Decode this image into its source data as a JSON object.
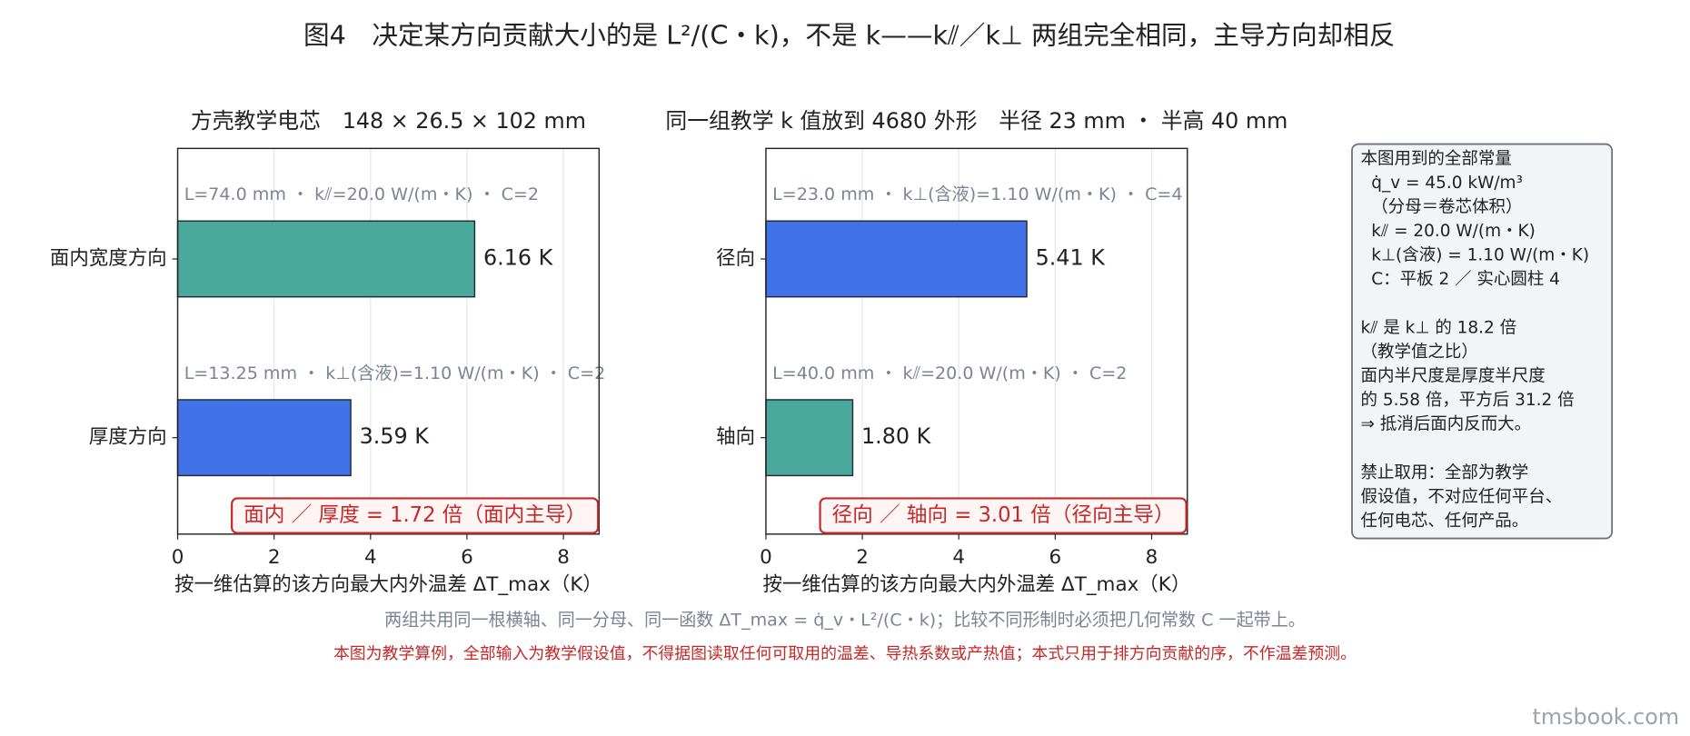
{
  "title": "图4　决定某方向贡献大小的是 L²/(C・k)，不是 k——k⫽／k⊥ 两组完全相同，主导方向却相反",
  "chart_data": [
    {
      "type": "barh",
      "title": "方壳教学电芯　148 × 26.5 × 102 mm",
      "categories": [
        "面内宽度方向",
        "厚度方向"
      ],
      "values": [
        6.16,
        3.59
      ],
      "value_labels": [
        "6.16 K",
        "3.59 K"
      ],
      "colors": [
        "#4aa99b",
        "#4272e8"
      ],
      "annotations": [
        "L=74.0 mm ・ k⫽=20.0 W/(m・K) ・ C=2",
        "L=13.25 mm ・ k⊥(含液)=1.10 W/(m・K) ・ C=2"
      ],
      "ratio_note": "面内 ／ 厚度 = 1.72 倍（面内主导）",
      "xlabel": "按一维估算的该方向最大内外温差 ΔT_max（K）",
      "xlim": [
        0,
        8.74
      ],
      "xticks": [
        0,
        2,
        4,
        6,
        8
      ],
      "grid": true
    },
    {
      "type": "barh",
      "title": "同一组教学 k 值放到 4680 外形　半径 23 mm ・ 半高 40 mm",
      "categories": [
        "径向",
        "轴向"
      ],
      "values": [
        5.41,
        1.8
      ],
      "value_labels": [
        "5.41 K",
        "1.80 K"
      ],
      "colors": [
        "#4272e8",
        "#4aa99b"
      ],
      "annotations": [
        "L=23.0 mm ・ k⊥(含液)=1.10 W/(m・K) ・ C=4",
        "L=40.0 mm ・ k⫽=20.0 W/(m・K) ・ C=2"
      ],
      "ratio_note": "径向 ／ 轴向 = 3.01 倍（径向主导）",
      "xlabel": "按一维估算的该方向最大内外温差 ΔT_max（K）",
      "xlim": [
        0,
        8.74
      ],
      "xticks": [
        0,
        2,
        4,
        6,
        8
      ],
      "grid": true
    }
  ],
  "sidebox": [
    [
      "本图用到的全部常量",
      "  q̇_v = 45.0 kW/m³",
      "  （分母＝卷芯体积）",
      "  k⫽ = 20.0 W/(m・K)",
      "  k⊥(含液) = 1.10 W/(m・K)",
      "  C：平板 2 ／ 实心圆柱 4"
    ],
    [
      "k⫽ 是 k⊥ 的 18.2 倍",
      "（教学值之比）",
      "面内半尺度是厚度半尺度",
      "的 5.58 倍，平方后 31.2 倍",
      "⇒ 抵消后面内反而大。"
    ],
    [
      "禁止取用：全部为教学",
      "假设值，不对应任何平台、",
      "任何电芯、任何产品。"
    ]
  ],
  "note": "两组共用同一根横轴、同一分母、同一函数 ΔT_max = q̇_v・L²/(C・k)；比较不同形制时必须把几何常数 C 一起带上。",
  "warning": "本图为教学算例，全部输入为教学假设值，不得据图读取任何可取用的温差、导热系数或产热值；本式只用于排方向贡献的序，不作温差预测。",
  "watermark": "tmsbook.com"
}
